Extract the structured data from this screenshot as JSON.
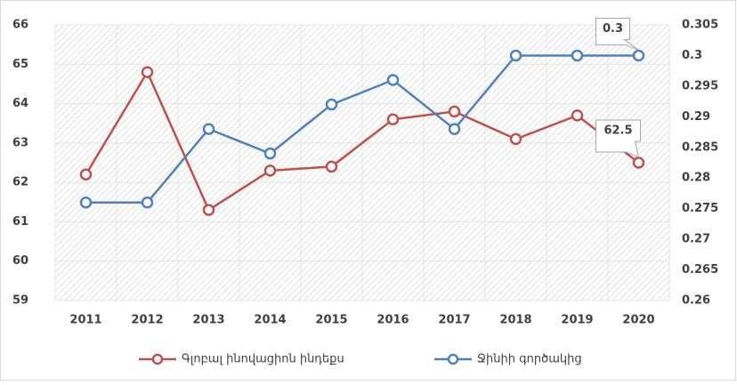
{
  "chart_data": {
    "type": "line",
    "categories": [
      "2011",
      "2012",
      "2013",
      "2014",
      "2015",
      "2016",
      "2017",
      "2018",
      "2019",
      "2020"
    ],
    "series": [
      {
        "name": "Գլոբալ ինովացիոն ինդեքս",
        "color": "#c0504d",
        "values": [
          62.2,
          64.8,
          61.3,
          62.3,
          62.4,
          63.6,
          63.8,
          63.1,
          63.7,
          62.5
        ]
      },
      {
        "name": "Ջինիի գործակից",
        "color": "#4f81bd",
        "axis": "y2",
        "values": [
          0.276,
          0.276,
          0.288,
          0.284,
          0.292,
          0.296,
          0.288,
          0.3,
          0.3,
          0.3
        ]
      }
    ],
    "ylim": [
      59,
      66
    ],
    "yticks": [
      59,
      60,
      61,
      62,
      63,
      64,
      65,
      66
    ],
    "y2lim": [
      0.26,
      0.305
    ],
    "y2ticks": [
      0.26,
      0.265,
      0.27,
      0.275,
      0.28,
      0.285,
      0.29,
      0.295,
      0.3,
      0.305
    ],
    "grid": true,
    "legend": "bottom"
  }
}
